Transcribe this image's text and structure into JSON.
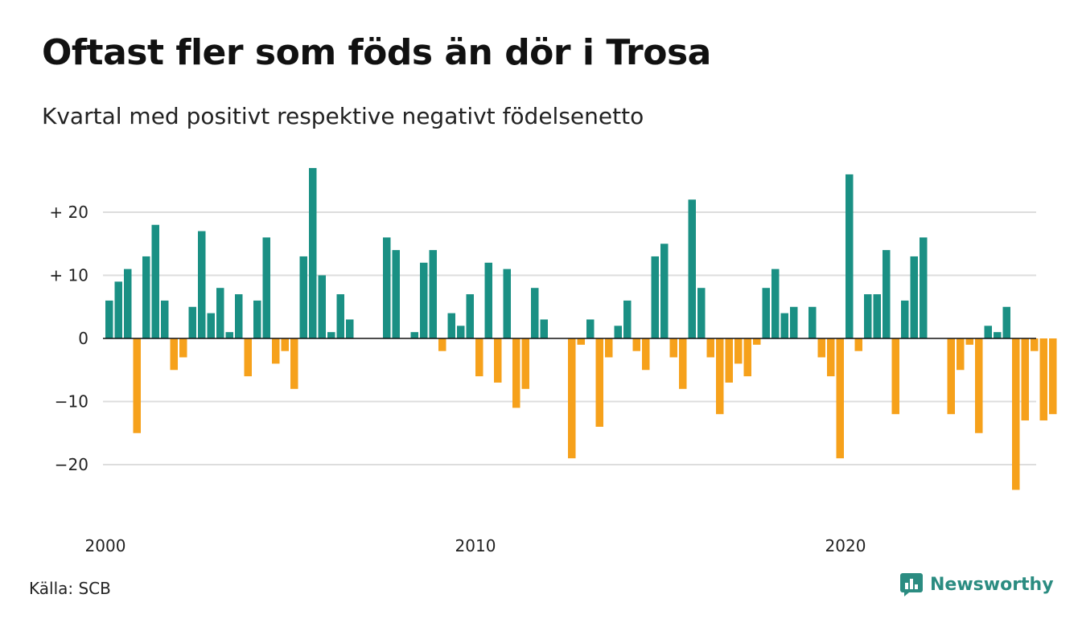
{
  "title": "Oftast fler som föds än dör i Trosa",
  "subtitle": "Kvartal med positivt respektive negativt födelsenetto",
  "source": "Källa: SCB",
  "brand": "Newsworthy",
  "colors": {
    "positive": "#1a9084",
    "negative": "#f6a11b",
    "grid": "#dddddd",
    "axis": "#111111"
  },
  "chart_data": {
    "type": "bar",
    "title": "Oftast fler som föds än dör i Trosa",
    "subtitle": "Kvartal med positivt respektive negativt födelsenetto",
    "xlabel": "",
    "ylabel": "",
    "ylim": [
      -30,
      30
    ],
    "yticks": [
      20,
      10,
      0,
      -10,
      -20
    ],
    "ytick_labels": [
      "+ 20",
      "+ 10",
      "0",
      "−10",
      "−20"
    ],
    "xtick_labels": [
      "2000",
      "2010",
      "2020"
    ],
    "x_start": "2000 Q1",
    "frequency": "quarter",
    "grid": true,
    "values": [
      6,
      9,
      11,
      -15,
      13,
      18,
      6,
      -5,
      -3,
      5,
      17,
      4,
      8,
      1,
      7,
      -6,
      6,
      16,
      -4,
      -2,
      -8,
      13,
      27,
      10,
      1,
      7,
      3,
      0,
      0,
      0,
      16,
      14,
      0,
      1,
      12,
      14,
      -2,
      4,
      2,
      7,
      -6,
      12,
      -7,
      11,
      -11,
      -8,
      8,
      3,
      0,
      0,
      -19,
      -1,
      3,
      -14,
      -3,
      2,
      6,
      -2,
      -5,
      13,
      15,
      -3,
      -8,
      22,
      8,
      -3,
      -12,
      -7,
      -4,
      -6,
      -1,
      8,
      11,
      4,
      5,
      0,
      5,
      -3,
      -6,
      -19,
      26,
      -2,
      7,
      7,
      14,
      -12,
      6,
      13,
      16,
      0,
      0,
      -12,
      -5,
      -1,
      -15,
      2,
      1,
      5,
      -24,
      -13,
      -2,
      -13,
      -12
    ]
  }
}
